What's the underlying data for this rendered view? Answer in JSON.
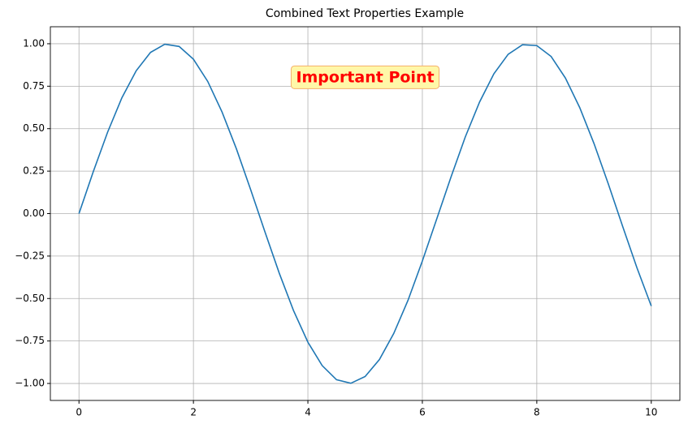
{
  "chart_data": {
    "type": "line",
    "title": "Combined Text Properties Example",
    "x": [
      0,
      0.25,
      0.5,
      0.75,
      1,
      1.25,
      1.5,
      1.75,
      2,
      2.25,
      2.5,
      2.75,
      3,
      3.25,
      3.5,
      3.75,
      4,
      4.25,
      4.5,
      4.75,
      5,
      5.25,
      5.5,
      5.75,
      6,
      6.25,
      6.5,
      6.75,
      7,
      7.25,
      7.5,
      7.75,
      8,
      8.25,
      8.5,
      8.75,
      9,
      9.25,
      9.5,
      9.75,
      10
    ],
    "series": [
      {
        "color": "#1f77b4",
        "values": [
          0,
          0.247,
          0.479,
          0.682,
          0.841,
          0.949,
          0.997,
          0.984,
          0.909,
          0.778,
          0.598,
          0.382,
          0.141,
          -0.108,
          -0.351,
          -0.572,
          -0.757,
          -0.895,
          -0.978,
          -0.999,
          -0.959,
          -0.859,
          -0.706,
          -0.51,
          -0.279,
          -0.033,
          0.215,
          0.451,
          0.657,
          0.823,
          0.938,
          0.994,
          0.989,
          0.925,
          0.798,
          0.624,
          0.412,
          0.174,
          -0.075,
          -0.319,
          -0.544
        ]
      }
    ],
    "xlim": [
      -0.5,
      10.5
    ],
    "ylim": [
      -1.1,
      1.1
    ],
    "xticks": [
      0,
      2,
      4,
      6,
      8,
      10
    ],
    "yticks": [
      {
        "value": -1,
        "label": "−1.00"
      },
      {
        "value": -0.75,
        "label": "−0.75"
      },
      {
        "value": -0.5,
        "label": "−0.50"
      },
      {
        "value": -0.25,
        "label": "−0.25"
      },
      {
        "value": 0,
        "label": "0.00"
      },
      {
        "value": 0.25,
        "label": "0.25"
      },
      {
        "value": 0.5,
        "label": "0.50"
      },
      {
        "value": 0.75,
        "label": "0.75"
      },
      {
        "value": 1,
        "label": "1.00"
      }
    ],
    "grid": true,
    "annotation": {
      "text": "Important Point",
      "x": 5,
      "y": 0.8,
      "color": "#ff0000"
    }
  }
}
